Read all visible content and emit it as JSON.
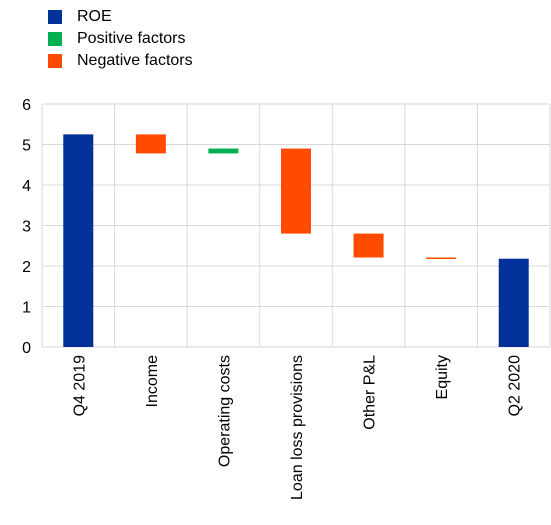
{
  "chart_data": {
    "type": "bar",
    "subtype": "waterfall",
    "title": "",
    "xlabel": "",
    "ylabel": "",
    "ylim": [
      0,
      6
    ],
    "yticks": [
      0,
      1,
      2,
      3,
      4,
      5,
      6
    ],
    "grid": true,
    "legend_position": "top-left",
    "categories": [
      "Q4 2019",
      "Income",
      "Operating costs",
      "Loan loss provisions",
      "Other P&L",
      "Equity",
      "Q2 2020"
    ],
    "bars": [
      {
        "category": "Q4 2019",
        "kind": "ROE",
        "start": 0,
        "end": 5.25
      },
      {
        "category": "Income",
        "kind": "Negative factors",
        "start": 5.25,
        "end": 4.78
      },
      {
        "category": "Operating costs",
        "kind": "Positive factors",
        "start": 4.78,
        "end": 4.9
      },
      {
        "category": "Loan loss provisions",
        "kind": "Negative factors",
        "start": 4.9,
        "end": 2.8
      },
      {
        "category": "Other P&L",
        "kind": "Negative factors",
        "start": 2.8,
        "end": 2.21
      },
      {
        "category": "Equity",
        "kind": "Negative factors",
        "start": 2.21,
        "end": 2.18
      },
      {
        "category": "Q2 2020",
        "kind": "ROE",
        "start": 0,
        "end": 2.18
      }
    ],
    "legend": [
      {
        "name": "ROE",
        "color": "#003299"
      },
      {
        "name": "Positive factors",
        "color": "#00B050"
      },
      {
        "name": "Negative factors",
        "color": "#FF4B00"
      }
    ]
  }
}
